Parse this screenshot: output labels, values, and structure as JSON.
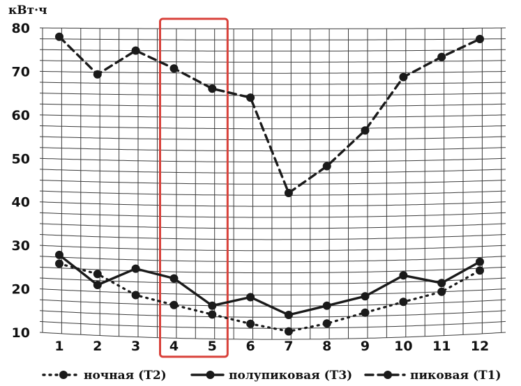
{
  "chart_data": {
    "type": "line",
    "unit_label": "кВт·ч",
    "categories": [
      "1",
      "2",
      "3",
      "4",
      "5",
      "6",
      "7",
      "8",
      "9",
      "10",
      "11",
      "12"
    ],
    "y_ticks": [
      "80",
      "70",
      "60",
      "50",
      "40",
      "30",
      "20",
      "10"
    ],
    "ylim": [
      10,
      80
    ],
    "grid": true,
    "legend_position": "bottom",
    "highlight": {
      "from": "4",
      "to": "5",
      "color": "#d9413a"
    },
    "series": [
      {
        "name": "ночная (Т2)",
        "style": "dotted",
        "values": [
          26,
          24,
          19.5,
          17.5,
          15.5,
          13.5,
          11.8,
          13.5,
          15.8,
          18,
          20,
          24.5
        ]
      },
      {
        "name": "полупиковая (Т3)",
        "style": "solid",
        "values": [
          28,
          21.5,
          25.5,
          23.5,
          17.5,
          19.5,
          15.5,
          17.5,
          19.5,
          24,
          22,
          26.5
        ]
      },
      {
        "name": "пиковая (Т1)",
        "style": "dashed",
        "values": [
          78,
          69.5,
          75,
          71,
          66.5,
          64.5,
          43,
          49,
          57,
          69,
          73.5,
          77.5
        ]
      }
    ]
  }
}
